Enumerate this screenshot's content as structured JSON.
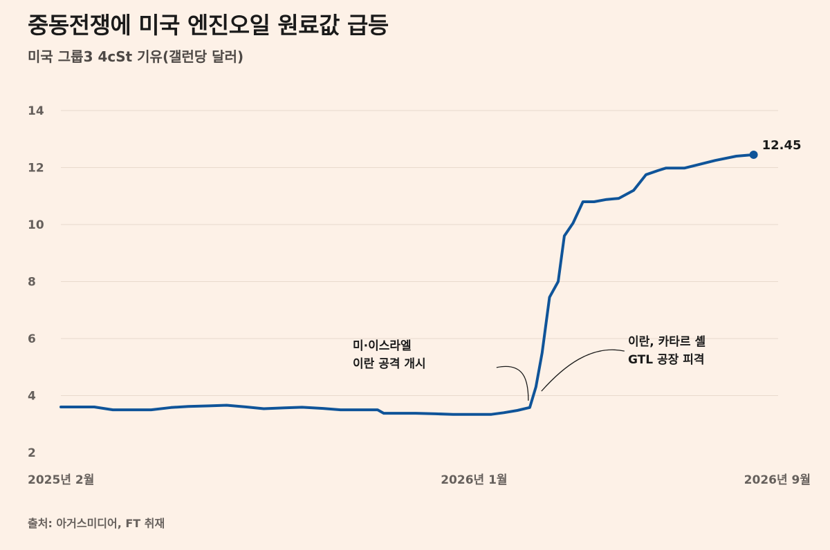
{
  "header": {
    "title": "중동전쟁에 미국 엔진오일 원료값 급등",
    "subtitle": "미국 그룹3 4cSt 기유(갤런당 달러)"
  },
  "footer": {
    "source": "출처: 아거스미디어, FT 취재"
  },
  "chart_data": {
    "type": "line",
    "title": "중동전쟁에 미국 엔진오일 원료값 급등",
    "subtitle": "미국 그룹3 4cSt 기유(갤런당 달러)",
    "ylabel": "",
    "ylim": [
      2,
      14
    ],
    "yticks": [
      2,
      4,
      6,
      8,
      10,
      12,
      14
    ],
    "xlim": [
      "2025-02-01",
      "2026-09-01"
    ],
    "x_tick_labels": [
      {
        "x": "2025-02-01",
        "label": "2025년 2월"
      },
      {
        "x": "2026-01-01",
        "label": "2026년 1월"
      },
      {
        "x": "2026-09-01",
        "label": "2026년 9월"
      }
    ],
    "grid": true,
    "line_color": "#0f5499",
    "series": [
      {
        "points": [
          [
            "2025-02-01",
            3.6
          ],
          [
            "2025-02-15",
            3.6
          ],
          [
            "2025-02-28",
            3.6
          ],
          [
            "2025-03-15",
            3.5
          ],
          [
            "2025-04-01",
            3.5
          ],
          [
            "2025-04-15",
            3.5
          ],
          [
            "2025-05-01",
            3.58
          ],
          [
            "2025-05-15",
            3.62
          ],
          [
            "2025-06-01",
            3.64
          ],
          [
            "2025-06-15",
            3.66
          ],
          [
            "2025-07-01",
            3.6
          ],
          [
            "2025-07-15",
            3.54
          ],
          [
            "2025-08-01",
            3.57
          ],
          [
            "2025-08-15",
            3.59
          ],
          [
            "2025-09-01",
            3.55
          ],
          [
            "2025-09-15",
            3.5
          ],
          [
            "2025-10-01",
            3.5
          ],
          [
            "2025-10-15",
            3.5
          ],
          [
            "2025-10-20",
            3.38
          ],
          [
            "2025-11-01",
            3.38
          ],
          [
            "2025-11-15",
            3.38
          ],
          [
            "2025-12-01",
            3.36
          ],
          [
            "2025-12-15",
            3.34
          ],
          [
            "2025-12-30",
            3.34
          ],
          [
            "2026-01-15",
            3.34
          ],
          [
            "2026-01-25",
            3.4
          ],
          [
            "2026-02-05",
            3.48
          ],
          [
            "2026-02-15",
            3.58
          ],
          [
            "2026-02-20",
            4.3
          ],
          [
            "2026-02-25",
            5.5
          ],
          [
            "2026-03-03",
            7.45
          ],
          [
            "2026-03-10",
            8.0
          ],
          [
            "2026-03-15",
            9.6
          ],
          [
            "2026-03-22",
            10.05
          ],
          [
            "2026-03-30",
            10.8
          ],
          [
            "2026-04-08",
            10.8
          ],
          [
            "2026-04-18",
            10.88
          ],
          [
            "2026-04-28",
            10.92
          ],
          [
            "2026-05-10",
            11.2
          ],
          [
            "2026-05-20",
            11.75
          ],
          [
            "2026-05-30",
            11.9
          ],
          [
            "2026-06-05",
            11.98
          ],
          [
            "2026-06-20",
            11.98
          ],
          [
            "2026-07-01",
            12.1
          ],
          [
            "2026-07-15",
            12.25
          ],
          [
            "2026-08-01",
            12.4
          ],
          [
            "2026-08-15",
            12.45
          ]
        ]
      }
    ],
    "last_value_label": "12.45",
    "annotations": [
      {
        "lines": [
          "미·이스라엘",
          "이란 공격 개시"
        ],
        "x": "2026-02-15",
        "y": 3.58
      },
      {
        "lines": [
          "이란, 카타르 셸",
          "GTL 공장 피격"
        ],
        "x": "2026-02-20",
        "y": 4.3
      }
    ]
  }
}
